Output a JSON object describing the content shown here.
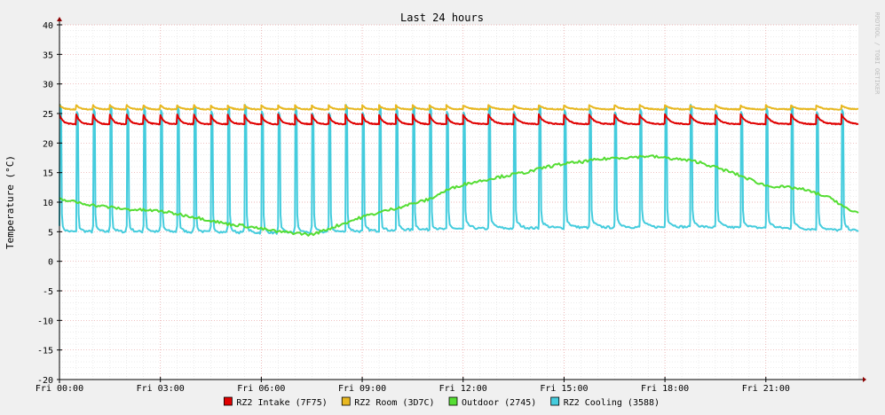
{
  "watermark": "RRDTOOL / TOBI OETIKER",
  "colors": {
    "background": "#f0f0f0",
    "plot_background": "#ffffff",
    "grid_major": "#e8a0a0",
    "grid_minor": "#d8d8d8",
    "axis": "#000000",
    "arrow": "#8b0000"
  },
  "chart_data": {
    "type": "line",
    "title": "Last 24 hours",
    "xlabel": "",
    "ylabel": "Temperature (°C)",
    "ylim": [
      -20,
      40
    ],
    "yticks": [
      40,
      35,
      30,
      25,
      20,
      15,
      10,
      5,
      0,
      -5,
      -10,
      -15,
      -20
    ],
    "x_unit": "hours since Fri 00:00",
    "xlim": [
      0,
      23.75
    ],
    "xticks": [
      {
        "label": "Fri 00:00",
        "x": 0
      },
      {
        "label": "Fri 03:00",
        "x": 3
      },
      {
        "label": "Fri 06:00",
        "x": 6
      },
      {
        "label": "Fri 09:00",
        "x": 9
      },
      {
        "label": "Fri 12:00",
        "x": 12
      },
      {
        "label": "Fri 15:00",
        "x": 15
      },
      {
        "label": "Fri 18:00",
        "x": 18
      },
      {
        "label": "Fri 21:00",
        "x": 21
      }
    ],
    "grid": true,
    "legend_position": "bottom",
    "series": [
      {
        "name": "RZ2 Intake (7F75)",
        "color": "#e00000",
        "pattern": "sawtooth",
        "base": 23.2,
        "peak": 24.8,
        "period_hours": [
          [
            0,
            12,
            0.5
          ],
          [
            12,
            23.75,
            0.75
          ]
        ]
      },
      {
        "name": "RZ2 Room (3D7C)",
        "color": "#e8b820",
        "pattern": "sawtooth",
        "base": 25.7,
        "peak": 26.4,
        "period_hours": [
          [
            0,
            12,
            0.5
          ],
          [
            12,
            23.75,
            0.75
          ]
        ]
      },
      {
        "name": "Outdoor (2745)",
        "color": "#55dd33",
        "pattern": "points",
        "x": [
          0,
          1,
          2,
          3,
          4,
          5,
          5.5,
          6,
          6.5,
          7,
          7.5,
          8,
          9,
          10,
          11,
          11.5,
          12,
          13,
          14,
          14.5,
          15,
          15.5,
          16,
          16.5,
          17,
          17.5,
          18,
          18.5,
          19,
          20,
          21,
          22,
          22.5,
          23,
          23.5,
          23.75
        ],
        "y": [
          10.5,
          9.5,
          8.8,
          8.5,
          7.5,
          6.3,
          6.0,
          5.5,
          5.0,
          4.8,
          4.5,
          5.5,
          7.5,
          9.0,
          10.5,
          12.0,
          13.0,
          14.2,
          15.2,
          16.0,
          16.5,
          16.8,
          17.2,
          17.5,
          17.6,
          17.8,
          17.5,
          17.2,
          16.8,
          15.0,
          12.8,
          12.3,
          11.5,
          10.5,
          8.5,
          8.3
        ]
      },
      {
        "name": "RZ2 Cooling (3588)",
        "color": "#44ccdd",
        "pattern": "pulses",
        "base_x": [
          0,
          3,
          6,
          8,
          10,
          12,
          15,
          18,
          21,
          23.75
        ],
        "base_y": [
          5.0,
          5.0,
          4.8,
          5.0,
          5.3,
          5.5,
          5.7,
          5.8,
          5.6,
          5.0
        ],
        "peak": 26.5,
        "period_hours": [
          [
            0,
            12,
            0.5
          ],
          [
            12,
            23.75,
            0.75
          ]
        ]
      }
    ]
  }
}
